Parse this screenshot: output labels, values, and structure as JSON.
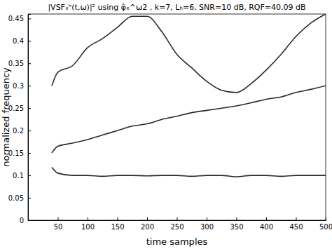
{
  "chart_data": {
    "type": "line",
    "title": "|VSFₓʰ(t,ω)|² using φ̂ₓ^ω2 , k=7, Lₕ=6, SNR=10 dB, RQF=40.09 dB",
    "x_label": "time samples",
    "y_label": "normalized frequency",
    "x": [
      40,
      50,
      75,
      100,
      125,
      150,
      175,
      200,
      225,
      250,
      275,
      300,
      325,
      350,
      375,
      400,
      425,
      450,
      475,
      500
    ],
    "series": [
      {
        "color": "#2a2a2a",
        "values": [
          0.118,
          0.105,
          0.1,
          0.1,
          0.098,
          0.1,
          0.1,
          0.099,
          0.1,
          0.1,
          0.098,
          0.1,
          0.1,
          0.097,
          0.1,
          0.1,
          0.098,
          0.1,
          0.1,
          0.1
        ]
      },
      {
        "color": "#2a2a2a",
        "values": [
          0.15,
          0.165,
          0.172,
          0.18,
          0.19,
          0.2,
          0.21,
          0.215,
          0.225,
          0.232,
          0.24,
          0.245,
          0.25,
          0.255,
          0.262,
          0.27,
          0.275,
          0.285,
          0.292,
          0.3
        ]
      },
      {
        "color": "#2a2a2a",
        "values": [
          0.3,
          0.33,
          0.345,
          0.385,
          0.405,
          0.43,
          0.455,
          0.455,
          0.42,
          0.37,
          0.34,
          0.31,
          0.29,
          0.285,
          0.305,
          0.335,
          0.37,
          0.41,
          0.44,
          0.46
        ]
      }
    ],
    "xlim": [
      0,
      500
    ],
    "xticks": [
      50,
      100,
      150,
      200,
      250,
      300,
      350,
      400,
      450,
      500
    ],
    "ylim": [
      0,
      0.46
    ],
    "yticks": [
      0,
      0.05,
      0.1,
      0.15,
      0.2,
      0.25,
      0.3,
      0.35,
      0.4,
      0.45
    ],
    "grid": false
  }
}
